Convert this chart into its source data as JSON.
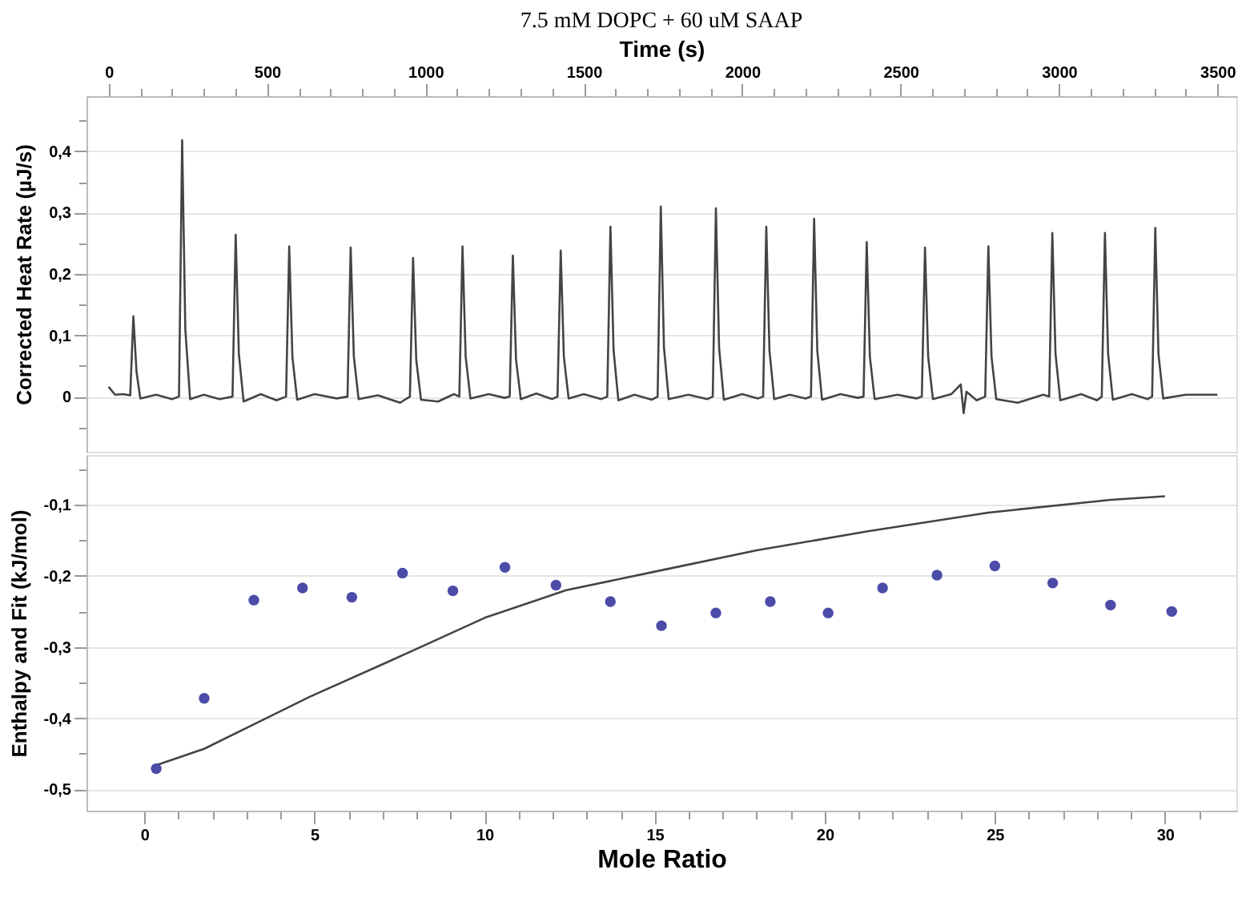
{
  "chart_data": [
    {
      "type": "line",
      "title": "7.5 mM DOPC + 60 uM SAAP",
      "xlabel": "Time (s)",
      "ylabel": "Corrected Heat Rate (µJ/s)",
      "grid": "y",
      "xlim": [
        -70,
        3560
      ],
      "xticks": [
        0,
        {
          "value": 100,
          "label": null
        },
        {
          "value": 200,
          "label": null
        },
        {
          "value": 300,
          "label": null
        },
        {
          "value": 400,
          "label": null
        },
        500,
        {
          "value": 600,
          "label": null
        },
        {
          "value": 700,
          "label": null
        },
        {
          "value": 800,
          "label": null
        },
        {
          "value": 900,
          "label": null
        },
        1000,
        {
          "value": 1100,
          "label": null
        },
        {
          "value": 1200,
          "label": null
        },
        {
          "value": 1300,
          "label": null
        },
        {
          "value": 1400,
          "label": null
        },
        1500,
        {
          "value": 1600,
          "label": null
        },
        {
          "value": 1700,
          "label": null
        },
        {
          "value": 1800,
          "label": null
        },
        {
          "value": 1900,
          "label": null
        },
        2000,
        {
          "value": 2100,
          "label": null
        },
        {
          "value": 2200,
          "label": null
        },
        {
          "value": 2300,
          "label": null
        },
        {
          "value": 2400,
          "label": null
        },
        2500,
        {
          "value": 2600,
          "label": null
        },
        {
          "value": 2700,
          "label": null
        },
        {
          "value": 2800,
          "label": null
        },
        {
          "value": 2900,
          "label": null
        },
        3000,
        {
          "value": 3100,
          "label": null
        },
        {
          "value": 3200,
          "label": null
        },
        {
          "value": 3300,
          "label": null
        },
        {
          "value": 3400,
          "label": null
        },
        3500
      ],
      "ylim": [
        -0.09,
        0.49
      ],
      "yticks": [
        {
          "value": -0.05,
          "label": null
        },
        0,
        {
          "value": 0.05,
          "label": null
        },
        {
          "value": 0.1,
          "label": "0,1"
        },
        {
          "value": 0.15,
          "label": null
        },
        {
          "value": 0.2,
          "label": "0,2"
        },
        {
          "value": 0.25,
          "label": null
        },
        {
          "value": 0.3,
          "label": "0,3"
        },
        {
          "value": 0.35,
          "label": null
        },
        {
          "value": 0.4,
          "label": "0,4"
        },
        {
          "value": 0.45,
          "label": null
        }
      ],
      "series": [
        {
          "color": "#444444",
          "x": [
            0,
            20,
            45,
            68,
            78,
            88,
            100,
            150,
            200,
            222,
            232,
            242,
            257,
            300,
            350,
            391,
            401,
            411,
            426,
            480,
            530,
            560,
            570,
            580,
            595,
            650,
            720,
            754,
            764,
            774,
            789,
            850,
            920,
            951,
            961,
            971,
            986,
            1040,
            1090,
            1107,
            1117,
            1127,
            1142,
            1200,
            1250,
            1266,
            1276,
            1286,
            1301,
            1350,
            1400,
            1417,
            1427,
            1437,
            1452,
            1500,
            1555,
            1574,
            1584,
            1594,
            1609,
            1660,
            1715,
            1733,
            1743,
            1753,
            1768,
            1830,
            1890,
            1907,
            1917,
            1927,
            1942,
            2000,
            2050,
            2066,
            2076,
            2086,
            2101,
            2150,
            2200,
            2217,
            2227,
            2237,
            2252,
            2310,
            2365,
            2383,
            2393,
            2403,
            2418,
            2490,
            2550,
            2567,
            2577,
            2587,
            2602,
            2660,
            2690,
            2699,
            2708,
            2740,
            2767,
            2777,
            2787,
            2802,
            2870,
            2950,
            2969,
            2979,
            2989,
            3004,
            3070,
            3120,
            3135,
            3145,
            3155,
            3170,
            3230,
            3280,
            3294,
            3304,
            3314,
            3329,
            3400,
            3500
          ],
          "values": [
            0.016,
            0.003,
            0.004,
            0.002,
            0.131,
            0.04,
            -0.003,
            0.003,
            -0.004,
            0.0,
            0.418,
            0.11,
            -0.004,
            0.003,
            -0.004,
            0.0,
            0.264,
            0.07,
            -0.008,
            0.004,
            -0.006,
            0.0,
            0.245,
            0.065,
            -0.005,
            0.004,
            -0.003,
            0.0,
            0.243,
            0.065,
            -0.004,
            0.002,
            -0.01,
            0.0,
            0.226,
            0.06,
            -0.005,
            -0.008,
            0.004,
            0.0,
            0.245,
            0.065,
            -0.003,
            0.004,
            -0.002,
            0.0,
            0.23,
            0.06,
            -0.004,
            0.005,
            -0.004,
            0.0,
            0.238,
            0.065,
            -0.003,
            0.004,
            -0.004,
            0.0,
            0.277,
            0.075,
            -0.006,
            0.003,
            -0.005,
            0.0,
            0.31,
            0.08,
            -0.004,
            0.003,
            -0.004,
            0.0,
            0.307,
            0.08,
            -0.005,
            0.004,
            -0.003,
            0.0,
            0.277,
            0.075,
            -0.004,
            0.003,
            -0.003,
            0.0,
            0.29,
            0.075,
            -0.005,
            0.004,
            -0.002,
            0.0,
            0.252,
            0.065,
            -0.004,
            0.003,
            -0.003,
            0.0,
            0.243,
            0.065,
            -0.004,
            0.004,
            0.02,
            -0.027,
            0.008,
            -0.006,
            0.0,
            0.245,
            0.065,
            -0.004,
            -0.01,
            0.003,
            0.0,
            0.267,
            0.07,
            -0.006,
            0.004,
            -0.006,
            0.0,
            0.267,
            0.07,
            -0.005,
            0.004,
            -0.004,
            0.0,
            0.275,
            0.07,
            -0.003,
            0.003,
            0.003
          ]
        }
      ]
    },
    {
      "type": "scatter",
      "xlabel": "Mole Ratio",
      "ylabel": "Enthalpy and Fit (kJ/mol)",
      "grid": "y",
      "xlim": [
        -1.7,
        32.1
      ],
      "xticks": [
        0,
        {
          "value": 1,
          "label": null
        },
        {
          "value": 2,
          "label": null
        },
        {
          "value": 3,
          "label": null
        },
        {
          "value": 4,
          "label": null
        },
        5,
        {
          "value": 6,
          "label": null
        },
        {
          "value": 7,
          "label": null
        },
        {
          "value": 8,
          "label": null
        },
        {
          "value": 9,
          "label": null
        },
        10,
        {
          "value": 11,
          "label": null
        },
        {
          "value": 12,
          "label": null
        },
        {
          "value": 13,
          "label": null
        },
        {
          "value": 14,
          "label": null
        },
        15,
        {
          "value": 16,
          "label": null
        },
        {
          "value": 17,
          "label": null
        },
        {
          "value": 18,
          "label": null
        },
        {
          "value": 19,
          "label": null
        },
        20,
        {
          "value": 21,
          "label": null
        },
        {
          "value": 22,
          "label": null
        },
        {
          "value": 23,
          "label": null
        },
        {
          "value": 24,
          "label": null
        },
        25,
        {
          "value": 26,
          "label": null
        },
        {
          "value": 27,
          "label": null
        },
        {
          "value": 28,
          "label": null
        },
        {
          "value": 29,
          "label": null
        },
        30,
        {
          "value": 31,
          "label": null
        }
      ],
      "ylim": [
        -0.53,
        -0.03
      ],
      "yticks": [
        {
          "value": -0.05,
          "label": null
        },
        {
          "value": -0.1,
          "label": "-0,1"
        },
        {
          "value": -0.15,
          "label": null
        },
        {
          "value": -0.2,
          "label": "-0,2"
        },
        {
          "value": -0.25,
          "label": null
        },
        {
          "value": -0.3,
          "label": "-0,3"
        },
        {
          "value": -0.35,
          "label": null
        },
        {
          "value": -0.4,
          "label": "-0,4"
        },
        {
          "value": -0.45,
          "label": null
        },
        {
          "value": -0.5,
          "label": "-0,5"
        }
      ],
      "series": [
        {
          "type": "line",
          "color": "#444444",
          "marker": "none",
          "x": [
            0.35,
            1.76,
            3.2,
            4.86,
            7.2,
            10.0,
            12.4,
            15.2,
            18.0,
            21.3,
            24.8,
            28.4,
            30.0
          ],
          "values": [
            -0.466,
            -0.443,
            -0.409,
            -0.37,
            -0.32,
            -0.259,
            -0.22,
            -0.192,
            -0.164,
            -0.137,
            -0.111,
            -0.093,
            -0.088
          ]
        },
        {
          "type": "scatter",
          "color": "#4b4ba8",
          "marker": "circle",
          "x": [
            0.35,
            1.76,
            3.22,
            4.65,
            6.1,
            7.59,
            9.07,
            10.6,
            12.1,
            13.7,
            15.2,
            16.8,
            18.4,
            20.1,
            21.7,
            23.3,
            25.0,
            26.7,
            28.4,
            30.2
          ],
          "values": [
            -0.471,
            -0.372,
            -0.234,
            -0.217,
            -0.23,
            -0.196,
            -0.221,
            -0.188,
            -0.213,
            -0.236,
            -0.27,
            -0.252,
            -0.236,
            -0.252,
            -0.217,
            -0.199,
            -0.186,
            -0.21,
            -0.241,
            -0.25
          ]
        }
      ]
    }
  ]
}
